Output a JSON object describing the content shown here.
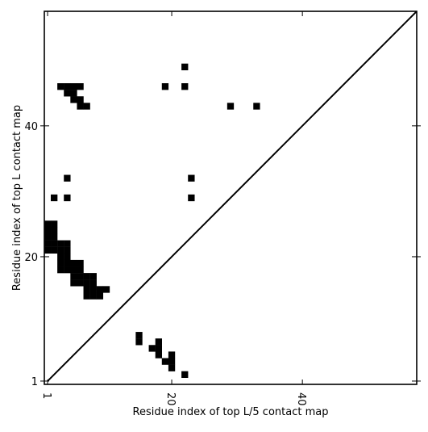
{
  "chart_data": {
    "type": "heatmap",
    "title": "",
    "xlabel": "Residue index of top L/5 contact map",
    "ylabel": "Residue index of top L contact map",
    "xlim": [
      0.5,
      57.5
    ],
    "ylim": [
      0.5,
      57.5
    ],
    "x_ticks": [
      {
        "value": 1,
        "label": "1"
      },
      {
        "value": 20,
        "label": "20"
      },
      {
        "value": 40,
        "label": "40"
      }
    ],
    "y_ticks": [
      {
        "value": 1,
        "label": "1"
      },
      {
        "value": 20,
        "label": "20"
      },
      {
        "value": 40,
        "label": "40"
      }
    ],
    "diagonal": true,
    "grid": false,
    "lower_triangle_contacts": [
      [
        15,
        8
      ],
      [
        15,
        7
      ],
      [
        18,
        7
      ],
      [
        17,
        6
      ],
      [
        18,
        6
      ],
      [
        18,
        5
      ],
      [
        20,
        5
      ],
      [
        19,
        4
      ],
      [
        20,
        4
      ],
      [
        20,
        3
      ],
      [
        22,
        2
      ]
    ],
    "upper_triangle_contacts": [
      [
        22,
        49
      ],
      [
        3,
        46
      ],
      [
        4,
        46
      ],
      [
        5,
        46
      ],
      [
        6,
        46
      ],
      [
        19,
        46
      ],
      [
        22,
        46
      ],
      [
        4,
        45
      ],
      [
        5,
        45
      ],
      [
        5,
        44
      ],
      [
        6,
        44
      ],
      [
        6,
        43
      ],
      [
        7,
        43
      ],
      [
        29,
        43
      ],
      [
        33,
        43
      ],
      [
        4,
        32
      ],
      [
        23,
        32
      ],
      [
        2,
        29
      ],
      [
        4,
        29
      ],
      [
        23,
        29
      ],
      [
        1,
        25
      ],
      [
        2,
        25
      ],
      [
        1,
        24
      ],
      [
        2,
        24
      ],
      [
        1,
        23
      ],
      [
        2,
        23
      ],
      [
        1,
        22
      ],
      [
        2,
        22
      ],
      [
        3,
        22
      ],
      [
        4,
        22
      ],
      [
        1,
        21
      ],
      [
        2,
        21
      ],
      [
        3,
        21
      ],
      [
        4,
        21
      ],
      [
        3,
        20
      ],
      [
        4,
        20
      ],
      [
        3,
        19
      ],
      [
        4,
        19
      ],
      [
        5,
        19
      ],
      [
        6,
        19
      ],
      [
        3,
        18
      ],
      [
        4,
        18
      ],
      [
        5,
        18
      ],
      [
        6,
        18
      ],
      [
        5,
        17
      ],
      [
        6,
        17
      ],
      [
        7,
        17
      ],
      [
        8,
        17
      ],
      [
        5,
        16
      ],
      [
        6,
        16
      ],
      [
        7,
        16
      ],
      [
        8,
        16
      ],
      [
        7,
        15
      ],
      [
        8,
        15
      ],
      [
        9,
        15
      ],
      [
        10,
        15
      ],
      [
        7,
        14
      ],
      [
        8,
        14
      ],
      [
        9,
        14
      ]
    ]
  }
}
